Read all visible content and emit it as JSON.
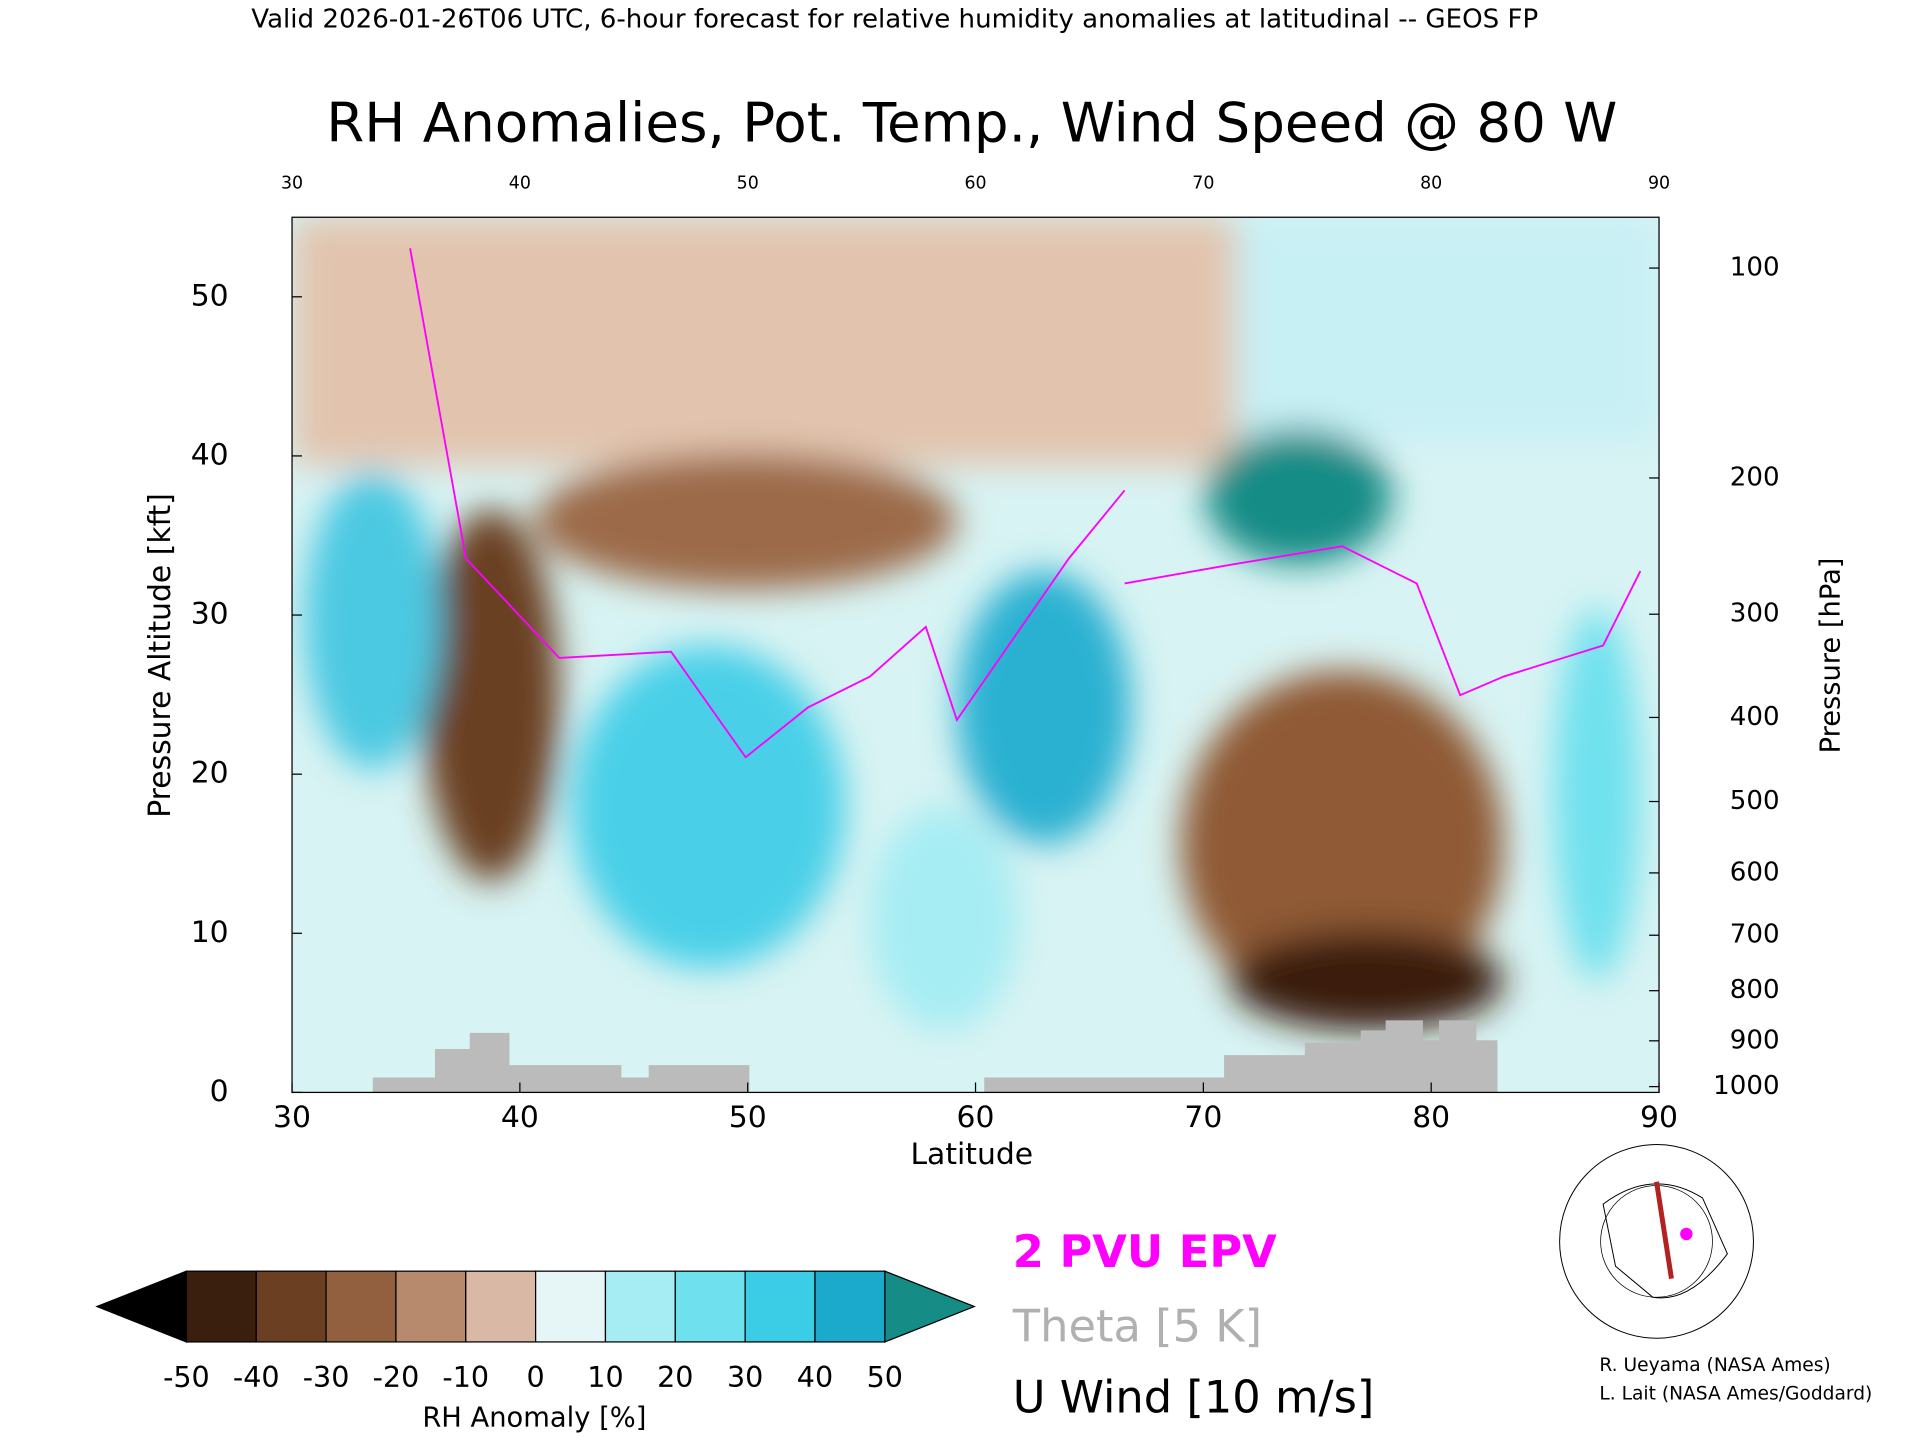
{
  "header": "Valid 2026-01-26T06 UTC, 6-hour forecast for relative humidity anomalies at latitudinal -- GEOS FP",
  "chart_data": {
    "type": "cross-section",
    "title": "RH Anomalies, Pot. Temp., Wind Speed @ 80 W",
    "x_label": "Latitude",
    "y_label": "Pressure Altitude [kft]",
    "y2_label": "Pressure [hPa]",
    "xlim": [
      30,
      90
    ],
    "xticks": [
      30,
      40,
      50,
      60,
      70,
      80,
      90
    ],
    "ylim": [
      0,
      55
    ],
    "yticks": [
      0,
      10,
      20,
      30,
      40,
      50
    ],
    "y2scale": "pressure-altitude",
    "y2ticks": [
      100,
      200,
      300,
      400,
      500,
      600,
      700,
      800,
      900,
      1000
    ],
    "colorbar": {
      "label": "RH Anomaly [%]",
      "ticks": [
        -50,
        -40,
        -30,
        -20,
        -10,
        0,
        10,
        20,
        30,
        40,
        50
      ],
      "colors": [
        "#3a1e0e",
        "#6b3f22",
        "#93603f",
        "#b78a6d",
        "#d9b9a6",
        "#e6f6f6",
        "#a6edf3",
        "#6fe1ee",
        "#3ccde6",
        "#1ba9cc"
      ],
      "under": "#000000",
      "over": "#168c86"
    },
    "legend": [
      "2 PVU EPV",
      "Theta [5 K]",
      "U Wind [10 m/s]"
    ],
    "legend_colors": [
      "#ff00ff",
      "#b0b0b0",
      "#000000"
    ]
  },
  "credits": [
    "R. Ueyama (NASA Ames)",
    "L. Lait (NASA Ames/Goddard)"
  ]
}
